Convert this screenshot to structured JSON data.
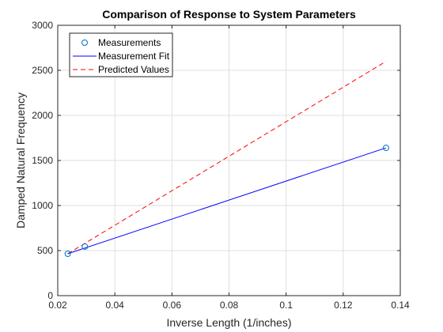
{
  "chart_data": {
    "type": "line",
    "title": "Comparison of Response to System Parameters",
    "xlabel": "Inverse Length (1/inches)",
    "ylabel": "Damped Natural Frequency",
    "xlim": [
      0.02,
      0.14
    ],
    "ylim": [
      0,
      3000
    ],
    "xticks": [
      0.02,
      0.04,
      0.06,
      0.08,
      0.1,
      0.12,
      0.14
    ],
    "xtick_labels": [
      "0.02",
      "0.04",
      "0.06",
      "0.08",
      "0.1",
      "0.12",
      "0.14"
    ],
    "yticks": [
      0,
      500,
      1000,
      1500,
      2000,
      2500,
      3000
    ],
    "ytick_labels": [
      "0",
      "500",
      "1000",
      "1500",
      "2000",
      "2500",
      "3000"
    ],
    "grid": true,
    "legend_position": "top-left",
    "series": [
      {
        "name": "Measurements",
        "style": "markers",
        "marker": "circle",
        "color": "#0072BD",
        "x": [
          0.0235,
          0.0295,
          0.135
        ],
        "y": [
          465,
          545,
          1640
        ]
      },
      {
        "name": "Measurement Fit",
        "style": "solid",
        "color": "#0000FF",
        "x": [
          0.0235,
          0.135
        ],
        "y": [
          465,
          1640
        ]
      },
      {
        "name": "Predicted Values",
        "style": "dashed",
        "color": "#FF0000",
        "x": [
          0.0235,
          0.135
        ],
        "y": [
          465,
          2600
        ]
      }
    ]
  }
}
